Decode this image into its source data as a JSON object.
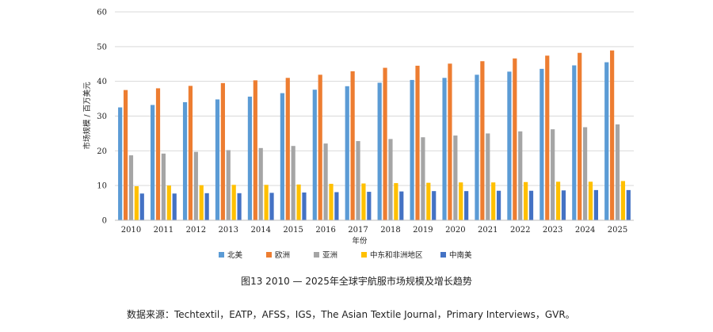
{
  "chart_data": {
    "type": "bar",
    "xlabel": "年份",
    "ylabel": "市场规模 / 百万美元",
    "ylim": [
      0,
      60
    ],
    "yticks": [
      0,
      10,
      20,
      30,
      40,
      50,
      60
    ],
    "grid": true,
    "legend_position": "bottom",
    "categories": [
      "2010",
      "2011",
      "2012",
      "2013",
      "2014",
      "2015",
      "2016",
      "2017",
      "2018",
      "2019",
      "2020",
      "2021",
      "2022",
      "2023",
      "2024",
      "2025"
    ],
    "series": [
      {
        "name": "北美",
        "color": "#5b9bd5",
        "values": [
          32.5,
          33.2,
          34.0,
          34.8,
          35.6,
          36.6,
          37.6,
          38.6,
          39.6,
          40.4,
          41.0,
          41.9,
          42.8,
          43.6,
          44.6,
          45.5
        ]
      },
      {
        "name": "欧洲",
        "color": "#ed7d31",
        "values": [
          37.5,
          38.0,
          38.7,
          39.5,
          40.3,
          41.0,
          41.9,
          42.9,
          43.9,
          44.5,
          45.1,
          45.8,
          46.6,
          47.4,
          48.2,
          48.9
        ]
      },
      {
        "name": "亚洲",
        "color": "#a5a5a5",
        "values": [
          18.7,
          19.2,
          19.7,
          20.2,
          20.8,
          21.4,
          22.1,
          22.8,
          23.4,
          23.9,
          24.4,
          25.0,
          25.6,
          26.2,
          26.8,
          27.6
        ]
      },
      {
        "name": "中东和非洲地区",
        "color": "#ffc000",
        "values": [
          9.8,
          10.0,
          10.1,
          10.2,
          10.2,
          10.3,
          10.5,
          10.6,
          10.7,
          10.8,
          10.9,
          10.9,
          11.0,
          11.1,
          11.1,
          11.3
        ]
      },
      {
        "name": "中南美",
        "color": "#4472c4",
        "values": [
          7.7,
          7.7,
          7.8,
          7.8,
          7.9,
          8.0,
          8.1,
          8.2,
          8.3,
          8.4,
          8.4,
          8.5,
          8.5,
          8.6,
          8.7,
          8.7
        ]
      }
    ]
  },
  "caption": "图13 2010 — 2025年全球宇航服市场规模及增长趋势",
  "source": "数据来源：Techtextil，EATP，AFSS，IGS，The Asian Textile Journal，Primary Interviews，GVR。"
}
